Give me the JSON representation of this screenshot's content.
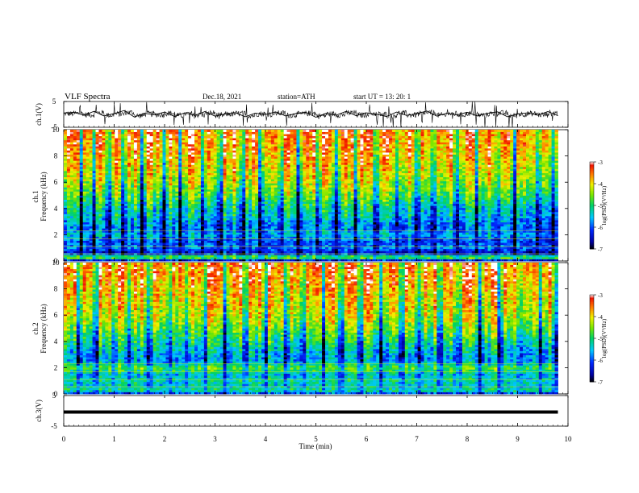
{
  "header": {
    "title": "VLF  Spectra",
    "date": "Dec.18, 2021",
    "station": "station=ATH",
    "start": "start  UT  =    13: 20: 1"
  },
  "colorbar_label": "log(PSD)(V²/Hz)",
  "chart_data": [
    {
      "type": "line",
      "name": "ch1-waveform",
      "ylabel": "ch.1(V)",
      "yticks": [
        5,
        -5
      ],
      "ylim": [
        -5,
        5
      ],
      "xlim": [
        0,
        10
      ],
      "x_end": 9.8,
      "values": [
        0.5,
        0.8,
        -0.3,
        1.2,
        -0.6,
        0.3,
        1.5,
        -1.0,
        0.4,
        -0.2,
        0.9,
        -0.8,
        0.6,
        -0.4,
        1.1,
        -0.7,
        0.2,
        0.7,
        -0.9,
        0.5,
        -0.1,
        1.0,
        -0.6,
        0.3,
        0.8,
        -1.1,
        0.4,
        -0.3,
        1.2,
        -0.5,
        0.6,
        0.1,
        -0.8,
        0.9,
        -0.4,
        0.3,
        1.3,
        -0.7,
        0.5,
        -0.2,
        0.8,
        -0.6,
        0.4,
        1.0,
        -0.9,
        0.2,
        0.6,
        -0.3,
        1.1,
        -0.5
      ]
    },
    {
      "type": "heatmap",
      "name": "ch1-spectrogram",
      "ylabel": "ch.1",
      "ylabel2": "Frequency (kHz)",
      "yticks": [
        0,
        2,
        4,
        6,
        8,
        10
      ],
      "ylim": [
        0,
        10
      ],
      "xlim": [
        0,
        10
      ],
      "x_end": 9.8,
      "colorbar": {
        "ticks": [
          -3,
          -4,
          -5,
          -6,
          -7
        ],
        "min": -7,
        "max": -3
      },
      "profile": {
        "freq_khz": [
          0,
          0.3,
          0.6,
          1.0,
          1.5,
          2.0,
          2.5,
          3.0,
          3.5,
          4.0,
          5.0,
          6.0,
          7.0,
          8.0,
          9.0,
          10.0
        ],
        "log_psd": [
          -6.8,
          -4.2,
          -6.5,
          -5.8,
          -6.0,
          -5.5,
          -5.8,
          -5.6,
          -5.3,
          -5.2,
          -4.6,
          -4.2,
          -3.9,
          -3.7,
          -3.5,
          -3.4
        ]
      },
      "spikes_min": [
        0.35,
        0.6,
        0.9,
        1.2,
        1.55,
        2.0,
        2.3,
        2.75,
        3.1,
        3.55,
        3.9,
        4.3,
        4.65,
        5.05,
        5.4,
        5.8,
        6.2,
        6.6,
        7.0,
        7.35,
        7.8,
        8.2,
        8.6,
        8.95,
        9.4,
        9.7
      ]
    },
    {
      "type": "heatmap",
      "name": "ch2-spectrogram",
      "ylabel": "ch.2",
      "ylabel2": "Frequency (kHz)",
      "yticks": [
        0,
        2,
        4,
        6,
        8,
        10
      ],
      "ylim": [
        0,
        10
      ],
      "xlim": [
        0,
        10
      ],
      "x_end": 9.8,
      "colorbar": {
        "ticks": [
          -3,
          -4,
          -5,
          -6,
          -7
        ],
        "min": -7,
        "max": -3
      },
      "profile": {
        "freq_khz": [
          0,
          0.3,
          0.6,
          1.0,
          1.5,
          2.0,
          2.5,
          3.0,
          3.5,
          4.0,
          5.0,
          6.0,
          7.0,
          8.0,
          9.0,
          10.0
        ],
        "log_psd": [
          -6.2,
          -5.0,
          -5.4,
          -5.2,
          -5.4,
          -4.6,
          -5.6,
          -5.5,
          -5.3,
          -5.0,
          -4.5,
          -4.1,
          -3.9,
          -3.7,
          -3.5,
          -3.4
        ]
      },
      "spikes_min": [
        0.3,
        0.65,
        1.0,
        1.3,
        1.7,
        2.1,
        2.45,
        2.8,
        3.2,
        3.6,
        4.0,
        4.4,
        4.75,
        5.15,
        5.5,
        5.9,
        6.3,
        6.7,
        7.05,
        7.45,
        7.85,
        8.25,
        8.65,
        9.05,
        9.45,
        9.75
      ]
    },
    {
      "type": "line",
      "name": "ch3-waveform",
      "ylabel": "ch.3(V)",
      "yticks": [
        5,
        -5
      ],
      "ylim": [
        -5,
        5
      ],
      "xlim": [
        0,
        10
      ],
      "x_end": 9.8,
      "values": [
        -0.4,
        -0.4,
        -0.4,
        -0.4,
        -0.4,
        -0.4,
        -0.4,
        -0.4,
        -0.4,
        -0.4,
        -0.4
      ]
    }
  ],
  "xaxis": {
    "label": "Time  (min)",
    "ticks": [
      "0",
      "1",
      "2",
      "3",
      "4",
      "5",
      "6",
      "7",
      "8",
      "9",
      "10"
    ]
  }
}
